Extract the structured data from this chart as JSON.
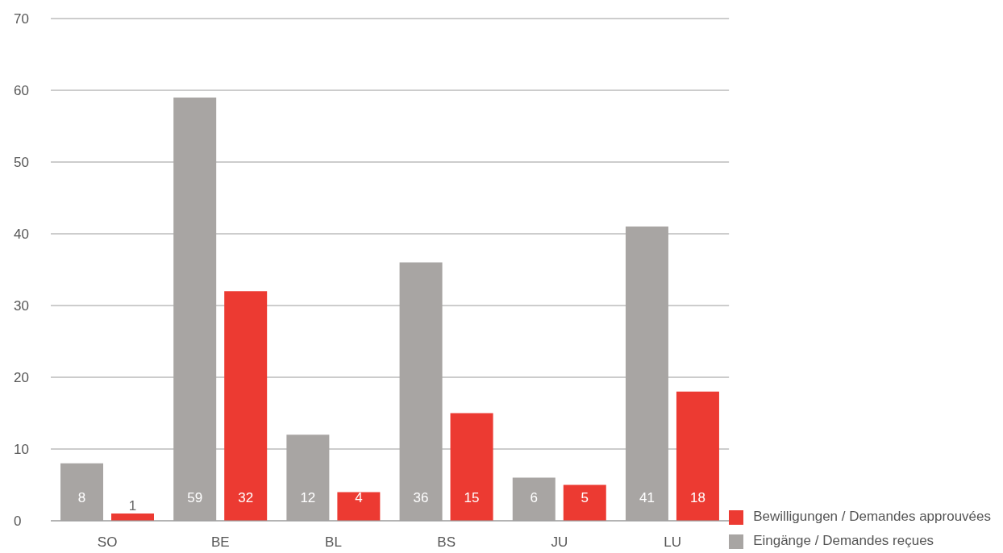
{
  "chart_data": {
    "type": "bar",
    "categories": [
      "SO",
      "BE",
      "BL",
      "BS",
      "JU",
      "LU"
    ],
    "series": [
      {
        "name": "Eingänge / Demandes reçues",
        "color": "#a8a5a3",
        "values": [
          8,
          59,
          12,
          36,
          6,
          41
        ]
      },
      {
        "name": "Bewilligungen / Demandes approuvées",
        "color": "#ec3a32",
        "values": [
          1,
          32,
          4,
          15,
          5,
          18
        ]
      }
    ],
    "ylim": [
      0,
      70
    ],
    "yticks": [
      0,
      10,
      20,
      30,
      40,
      50,
      60,
      70
    ],
    "grid": "y",
    "legend": "bottom right",
    "data_labels": true
  }
}
